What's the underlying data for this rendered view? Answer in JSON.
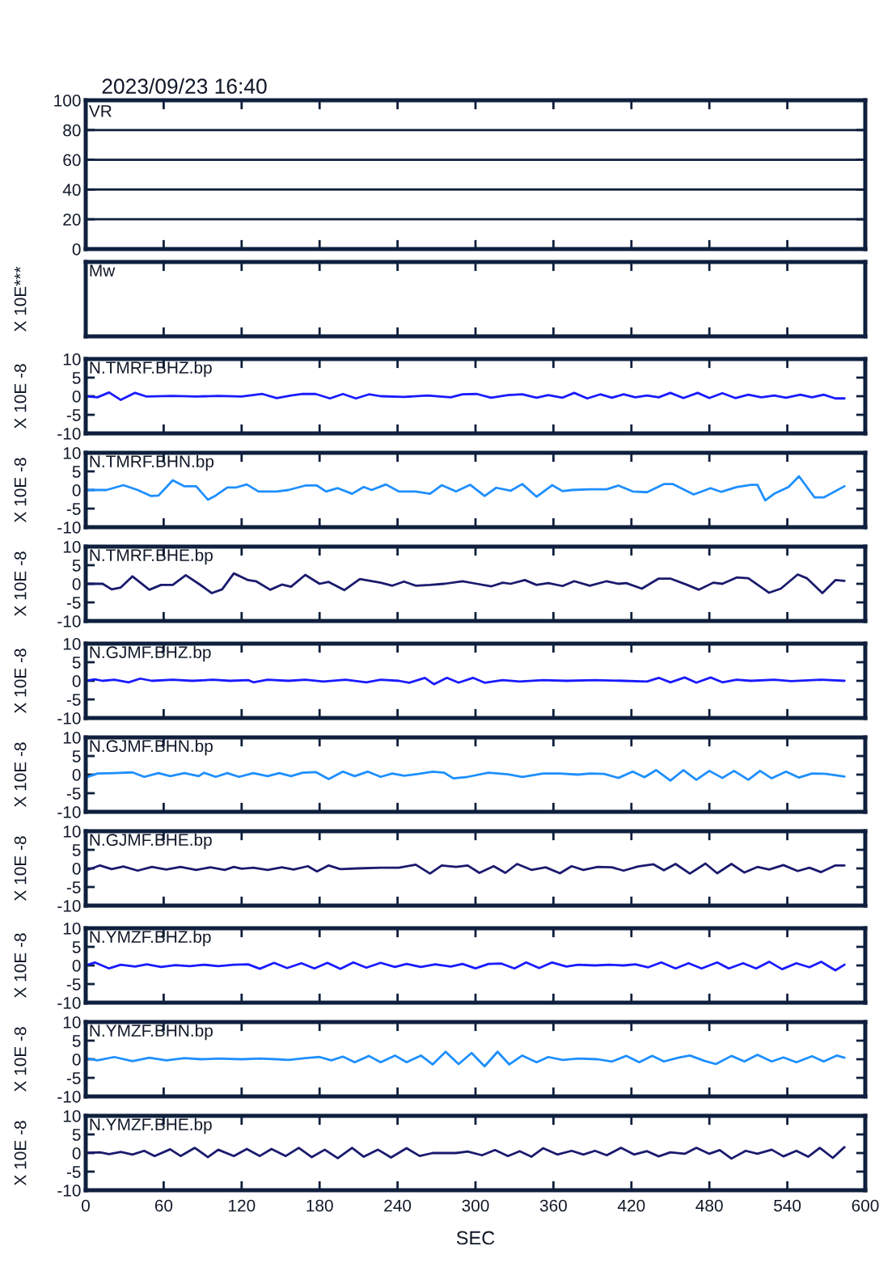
{
  "chart_data": [
    {
      "type": "line",
      "annotations": [
        "2023/09/23 16:40"
      ],
      "title": "VR",
      "xlim": [
        0,
        600
      ],
      "xticks": [
        0,
        60,
        120,
        180,
        240,
        300,
        360,
        420,
        480,
        540,
        600
      ],
      "ylim": [
        0,
        100
      ],
      "yticks": [
        0,
        20,
        40,
        60,
        80,
        100
      ],
      "grid": "y",
      "tick_labels": "y"
    },
    {
      "type": "other",
      "title": "Mw",
      "ylabel": "X 10E***"
    },
    {
      "type": "line",
      "title": "N.TMRF.BHZ.bp",
      "ylabel": "X 10E -8",
      "xlim": [
        0,
        600
      ],
      "xticks": [
        0,
        60,
        120,
        180,
        240,
        300,
        360,
        420,
        480,
        540,
        600
      ],
      "ylim": [
        -10,
        10
      ],
      "yticks": [
        -10,
        -5,
        0,
        5,
        10
      ],
      "tick_labels": "y",
      "x": [
        0,
        9,
        18,
        27,
        38,
        47,
        67,
        85,
        102,
        120,
        136,
        147,
        158,
        167,
        177,
        188,
        198,
        208,
        218,
        227,
        245,
        263,
        281,
        290,
        301,
        312,
        325,
        336,
        347,
        356,
        367,
        376,
        386,
        396,
        405,
        414,
        423,
        432,
        441,
        450,
        460,
        471,
        480,
        490,
        500,
        510,
        520,
        530,
        539,
        550,
        559,
        568,
        577,
        584
      ],
      "series": [
        {
          "color": "#1a1aff",
          "values": [
            0,
            -0.3,
            1.0,
            -1.0,
            0.9,
            -0.1,
            0.1,
            -0.1,
            0.1,
            -0.1,
            0.6,
            -0.5,
            0.2,
            0.6,
            0.6,
            -0.6,
            0.6,
            -0.6,
            0.5,
            0,
            -0.2,
            0.2,
            -0.3,
            0.5,
            0.6,
            -0.4,
            0.3,
            0.5,
            -0.4,
            0.3,
            -0.4,
            0.9,
            -0.6,
            0.5,
            -0.4,
            0.5,
            -0.3,
            0.2,
            -0.3,
            0.9,
            -0.5,
            0.9,
            -0.5,
            0.8,
            -0.5,
            0.4,
            -0.3,
            0.2,
            -0.4,
            0.4,
            -0.3,
            0.4,
            -0.6,
            -0.6
          ]
        }
      ]
    },
    {
      "type": "line",
      "title": "N.TMRF.BHN.bp",
      "ylabel": "X 10E -8",
      "xlim": [
        0,
        600
      ],
      "xticks": [
        0,
        60,
        120,
        180,
        240,
        300,
        360,
        420,
        480,
        540,
        600
      ],
      "ylim": [
        -10,
        10
      ],
      "yticks": [
        -10,
        -5,
        0,
        5,
        10
      ],
      "tick_labels": "y",
      "x": [
        0,
        16,
        29,
        40,
        50,
        56,
        67,
        76,
        85,
        94,
        100,
        109,
        116,
        124,
        133,
        147,
        156,
        169,
        178,
        185,
        194,
        205,
        214,
        220,
        231,
        241,
        254,
        265,
        274,
        285,
        296,
        307,
        316,
        327,
        336,
        347,
        359,
        367,
        374,
        388,
        401,
        410,
        421,
        432,
        445,
        452,
        468,
        481,
        489,
        501,
        512,
        517,
        523,
        530,
        541,
        549,
        561,
        568,
        584
      ],
      "series": [
        {
          "color": "#1e8fff",
          "values": [
            0,
            0,
            1.3,
            0,
            -1.6,
            -1.5,
            2.6,
            1.0,
            1.0,
            -2.6,
            -1.5,
            0.7,
            0.7,
            1.5,
            -0.4,
            -0.4,
            0,
            1.2,
            1.2,
            -0.4,
            0.5,
            -1.0,
            0.8,
            0,
            1.5,
            -0.4,
            -0.4,
            -1.0,
            1.3,
            -0.4,
            1.4,
            -1.6,
            0.6,
            -0.2,
            1.6,
            -1.8,
            1.3,
            -0.3,
            0,
            0.2,
            0.2,
            1.2,
            -0.4,
            -0.6,
            1.6,
            1.6,
            -1.2,
            0.5,
            -0.5,
            0.8,
            1.4,
            1.4,
            -2.8,
            -1.0,
            0.8,
            3.7,
            -2.0,
            -2.0,
            1.0
          ]
        }
      ]
    },
    {
      "type": "line",
      "title": "N.TMRF.BHE.bp",
      "ylabel": "X 10E -8",
      "xlim": [
        0,
        600
      ],
      "xticks": [
        0,
        60,
        120,
        180,
        240,
        300,
        360,
        420,
        480,
        540,
        600
      ],
      "ylim": [
        -10,
        10
      ],
      "yticks": [
        -10,
        -5,
        0,
        5,
        10
      ],
      "tick_labels": "y",
      "x": [
        0,
        13,
        20,
        27,
        36,
        49,
        58,
        67,
        77,
        87,
        97,
        105,
        114,
        125,
        131,
        142,
        151,
        158,
        169,
        180,
        187,
        199,
        211,
        227,
        236,
        245,
        254,
        265,
        276,
        290,
        301,
        312,
        321,
        327,
        338,
        347,
        356,
        367,
        376,
        388,
        401,
        410,
        416,
        428,
        441,
        450,
        463,
        472,
        483,
        490,
        501,
        510,
        526,
        535,
        548,
        555,
        567,
        577,
        584
      ],
      "series": [
        {
          "color": "#1a1a6e",
          "values": [
            0,
            0,
            -1.5,
            -1.0,
            2.0,
            -1.6,
            -0.3,
            -0.3,
            2.3,
            0,
            -2.5,
            -1.5,
            2.8,
            1.0,
            0.7,
            -1.6,
            -0.2,
            -0.8,
            2.4,
            0,
            0.5,
            -1.7,
            1.3,
            0.3,
            -0.5,
            0.6,
            -0.5,
            -0.3,
            0,
            0.7,
            0,
            -0.7,
            0.3,
            0,
            1.0,
            -0.3,
            0.2,
            -0.6,
            0.7,
            -0.5,
            0.7,
            0,
            0.2,
            -1.3,
            1.4,
            1.4,
            -0.3,
            -1.6,
            0.3,
            0,
            1.7,
            1.5,
            -2.4,
            -1.3,
            2.5,
            1.5,
            -2.5,
            1.0,
            0.8
          ]
        }
      ]
    },
    {
      "type": "line",
      "title": "N.GJMF.BHZ.bp",
      "ylabel": "X 10E -8",
      "xlim": [
        0,
        600
      ],
      "xticks": [
        0,
        60,
        120,
        180,
        240,
        300,
        360,
        420,
        480,
        540,
        600
      ],
      "ylim": [
        -10,
        10
      ],
      "yticks": [
        -10,
        -5,
        0,
        5,
        10
      ],
      "tick_labels": "y",
      "x": [
        0,
        7,
        13,
        22,
        33,
        42,
        51,
        67,
        82,
        98,
        111,
        125,
        129,
        140,
        156,
        169,
        183,
        200,
        216,
        227,
        241,
        249,
        261,
        268,
        278,
        287,
        298,
        307,
        321,
        334,
        352,
        370,
        392,
        414,
        432,
        441,
        450,
        461,
        470,
        481,
        490,
        501,
        512,
        530,
        543,
        566,
        584
      ],
      "series": [
        {
          "color": "#1a1aff",
          "values": [
            0,
            0.4,
            0,
            0.3,
            -0.4,
            0.6,
            0,
            0.3,
            0,
            0.3,
            0,
            0.2,
            -0.4,
            0.3,
            0,
            0.3,
            -0.2,
            0.3,
            -0.4,
            0.3,
            0,
            -0.5,
            0.8,
            -0.9,
            0.8,
            -0.5,
            0.8,
            -0.5,
            0.2,
            -0.2,
            0.2,
            0,
            0.2,
            0,
            -0.2,
            0.8,
            -0.4,
            0.9,
            -0.5,
            0.9,
            -0.4,
            0.3,
            0,
            0.3,
            -0.1,
            0.3,
            0
          ]
        }
      ]
    },
    {
      "type": "line",
      "title": "N.GJMF.BHN.bp",
      "ylabel": "X 10E -8",
      "xlim": [
        0,
        600
      ],
      "xticks": [
        0,
        60,
        120,
        180,
        240,
        300,
        360,
        420,
        480,
        540,
        600
      ],
      "ylim": [
        -10,
        10
      ],
      "yticks": [
        -10,
        -5,
        0,
        5,
        10
      ],
      "tick_labels": "y",
      "x": [
        0,
        9,
        22,
        36,
        45,
        56,
        65,
        76,
        87,
        91,
        100,
        109,
        118,
        129,
        140,
        149,
        158,
        167,
        177,
        187,
        198,
        207,
        217,
        227,
        236,
        245,
        256,
        267,
        276,
        283,
        294,
        310,
        325,
        336,
        352,
        365,
        379,
        388,
        399,
        410,
        421,
        430,
        439,
        450,
        460,
        470,
        480,
        490,
        499,
        510,
        519,
        528,
        539,
        549,
        559,
        570,
        584
      ],
      "series": [
        {
          "color": "#1e8fff",
          "values": [
            -0.8,
            0.3,
            0.4,
            0.6,
            -0.6,
            0.4,
            -0.4,
            0.4,
            -0.4,
            0.5,
            -0.6,
            0.4,
            -0.6,
            0.4,
            -0.4,
            0.4,
            -0.4,
            0.5,
            0.7,
            -1.2,
            0.8,
            -0.4,
            0.8,
            -0.6,
            0.3,
            -0.3,
            0.2,
            0.8,
            0.5,
            -1.0,
            -0.6,
            0.5,
            0.1,
            -0.6,
            0.3,
            0.3,
            0,
            0.3,
            0.2,
            -0.9,
            0.8,
            -0.7,
            1.2,
            -1.6,
            1.2,
            -1.4,
            1.0,
            -0.9,
            1.0,
            -1.4,
            1.0,
            -1.0,
            0.8,
            -0.8,
            0.3,
            0.2,
            -0.5
          ]
        }
      ]
    },
    {
      "type": "line",
      "title": "N.GJMF.BHE.bp",
      "ylabel": "X 10E -8",
      "xlim": [
        0,
        600
      ],
      "xticks": [
        0,
        60,
        120,
        180,
        240,
        300,
        360,
        420,
        480,
        540,
        600
      ],
      "ylim": [
        -10,
        10
      ],
      "yticks": [
        -10,
        -5,
        0,
        5,
        10
      ],
      "tick_labels": "y",
      "x": [
        0,
        11,
        20,
        29,
        40,
        51,
        62,
        73,
        85,
        96,
        107,
        114,
        120,
        129,
        140,
        151,
        160,
        171,
        178,
        187,
        196,
        209,
        227,
        241,
        254,
        265,
        274,
        285,
        294,
        303,
        314,
        323,
        332,
        343,
        354,
        365,
        374,
        383,
        394,
        405,
        414,
        425,
        437,
        445,
        454,
        465,
        477,
        486,
        497,
        507,
        517,
        526,
        537,
        548,
        557,
        566,
        577,
        584
      ],
      "series": [
        {
          "color": "#1a1a6e",
          "values": [
            -0.6,
            0.8,
            -0.2,
            0.5,
            -0.6,
            0.4,
            -0.3,
            0.4,
            -0.4,
            0.3,
            -0.4,
            0.4,
            -0.1,
            0.2,
            -0.4,
            0.3,
            -0.3,
            0.6,
            -0.8,
            0.8,
            -0.2,
            0,
            0.2,
            0.2,
            1.0,
            -1.4,
            0.8,
            0.4,
            0.8,
            -1.2,
            0.6,
            -1.2,
            1.2,
            -0.4,
            0.3,
            -1.3,
            0.6,
            -0.4,
            0.4,
            0.3,
            -0.6,
            0.5,
            1.1,
            -0.5,
            1.2,
            -1.4,
            1.3,
            -1.3,
            1.2,
            -1.1,
            0.4,
            -0.3,
            0.9,
            -0.7,
            0.2,
            -1.0,
            0.8,
            0.8
          ]
        }
      ]
    },
    {
      "type": "line",
      "title": "N.YMZF.BHZ.bp",
      "ylabel": "X 10E -8",
      "xlim": [
        0,
        600
      ],
      "xticks": [
        0,
        60,
        120,
        180,
        240,
        300,
        360,
        420,
        480,
        540,
        600
      ],
      "ylim": [
        -10,
        10
      ],
      "yticks": [
        -10,
        -5,
        0,
        5,
        10
      ],
      "tick_labels": "y",
      "x": [
        0,
        7,
        18,
        27,
        38,
        47,
        58,
        69,
        80,
        91,
        102,
        114,
        125,
        134,
        145,
        155,
        166,
        176,
        186,
        196,
        206,
        216,
        227,
        238,
        247,
        258,
        269,
        281,
        290,
        300,
        310,
        320,
        330,
        339,
        349,
        359,
        370,
        379,
        392,
        403,
        414,
        423,
        433,
        443,
        454,
        464,
        474,
        486,
        495,
        506,
        516,
        526,
        536,
        547,
        557,
        566,
        577,
        584
      ],
      "series": [
        {
          "color": "#1a1aff",
          "values": [
            0,
            0.8,
            -0.8,
            0.2,
            -0.3,
            0.3,
            -0.4,
            0.1,
            -0.2,
            0.2,
            -0.2,
            0.2,
            0.3,
            -0.9,
            0.7,
            -0.7,
            0.6,
            -0.8,
            0.7,
            -0.9,
            0.8,
            -0.6,
            0.7,
            -0.4,
            0.4,
            -0.4,
            0.3,
            -0.3,
            0.4,
            -0.8,
            0.4,
            0.5,
            -0.8,
            0.8,
            -0.7,
            0.8,
            -0.3,
            0.2,
            0,
            0.2,
            0,
            0.3,
            -0.5,
            0.8,
            -0.8,
            0.6,
            -0.8,
            0.8,
            -0.8,
            0.6,
            -0.8,
            1.0,
            -1.0,
            0.6,
            -0.5,
            1.0,
            -1.3,
            0.2
          ]
        }
      ]
    },
    {
      "type": "line",
      "title": "N.YMZF.BHN.bp",
      "ylabel": "X 10E -8",
      "xlim": [
        0,
        600
      ],
      "xticks": [
        0,
        60,
        120,
        180,
        240,
        300,
        360,
        420,
        480,
        540,
        600
      ],
      "ylim": [
        -10,
        10
      ],
      "yticks": [
        -10,
        -5,
        0,
        5,
        10
      ],
      "tick_labels": "y",
      "x": [
        0,
        9,
        22,
        36,
        49,
        62,
        76,
        89,
        102,
        120,
        134,
        147,
        156,
        169,
        180,
        189,
        198,
        207,
        218,
        227,
        238,
        247,
        258,
        267,
        277,
        287,
        297,
        307,
        317,
        326,
        336,
        347,
        356,
        367,
        379,
        394,
        405,
        416,
        426,
        436,
        445,
        456,
        465,
        476,
        485,
        497,
        507,
        517,
        528,
        537,
        547,
        559,
        568,
        578,
        584
      ],
      "series": [
        {
          "color": "#1e8fff",
          "values": [
            0.3,
            -0.3,
            0.6,
            -0.5,
            0.4,
            -0.3,
            0.3,
            0,
            0.2,
            0,
            0.2,
            0,
            -0.2,
            0.3,
            0.6,
            -0.3,
            0.7,
            -0.8,
            0.9,
            -0.8,
            1.0,
            -0.8,
            1.0,
            -1.4,
            2.0,
            -1.3,
            1.7,
            -1.9,
            2.0,
            -1.4,
            1.0,
            -0.8,
            0.6,
            -0.2,
            0.2,
            0,
            -0.6,
            0.9,
            -0.8,
            0.9,
            -0.6,
            0.4,
            1.0,
            -0.4,
            -1.3,
            0.9,
            -0.6,
            1.2,
            -0.6,
            0.5,
            -0.8,
            0.8,
            -0.6,
            1.0,
            0.4
          ]
        }
      ]
    },
    {
      "type": "line",
      "title": "N.YMZF.BHE.bp",
      "ylabel": "X 10E -8",
      "xlabel": "SEC",
      "xlim": [
        0,
        600
      ],
      "xticks": [
        0,
        60,
        120,
        180,
        240,
        300,
        360,
        420,
        480,
        540,
        600
      ],
      "ylim": [
        -10,
        10
      ],
      "yticks": [
        -10,
        -5,
        0,
        5,
        10
      ],
      "x": [
        0,
        11,
        18,
        27,
        36,
        45,
        53,
        65,
        73,
        84,
        94,
        102,
        114,
        124,
        134,
        143,
        154,
        164,
        174,
        184,
        194,
        205,
        214,
        225,
        235,
        247,
        257,
        267,
        285,
        294,
        305,
        315,
        325,
        334,
        343,
        352,
        363,
        374,
        383,
        392,
        401,
        412,
        422,
        432,
        441,
        450,
        461,
        470,
        480,
        488,
        497,
        508,
        517,
        528,
        537,
        547,
        556,
        565,
        575,
        584
      ],
      "series": [
        {
          "color": "#1a1a6e",
          "values": [
            0.1,
            0.2,
            -0.3,
            0.3,
            -0.4,
            0.6,
            -0.8,
            1.0,
            -0.8,
            1.4,
            -1.1,
            0.9,
            -0.8,
            1.1,
            -0.8,
            1.1,
            -0.8,
            1.4,
            -1.1,
            0.9,
            -1.4,
            1.4,
            -1.0,
            0.9,
            -1.2,
            1.3,
            -0.8,
            0,
            0,
            0.4,
            -0.6,
            0.8,
            -0.8,
            0.5,
            -1.0,
            1.3,
            -0.4,
            0.6,
            -0.4,
            0.6,
            -0.6,
            1.4,
            -0.4,
            0.5,
            -0.9,
            0.2,
            -0.2,
            1.4,
            -0.2,
            0.8,
            -1.5,
            0.6,
            -0.2,
            0.9,
            -0.9,
            0.6,
            -1.0,
            1.4,
            -1.3,
            1.6
          ]
        }
      ]
    }
  ]
}
